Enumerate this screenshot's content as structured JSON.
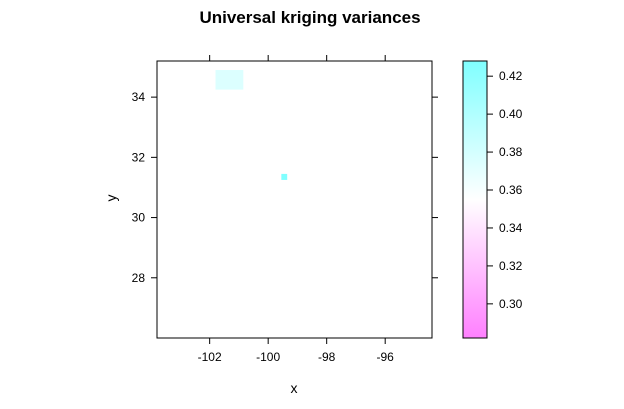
{
  "chart_data": {
    "type": "heatmap",
    "title": "Universal kriging variances",
    "xlabel": "x",
    "ylabel": "y",
    "xlim": [
      -103.8,
      -94.4
    ],
    "ylim": [
      26.0,
      35.2
    ],
    "x_ticks": [
      -102,
      -100,
      -98,
      -96
    ],
    "x_tick_labels": [
      "-102",
      "-100",
      "-98",
      "-96"
    ],
    "y_ticks": [
      28,
      30,
      32,
      34
    ],
    "y_tick_labels": [
      "28",
      "30",
      "32",
      "34"
    ],
    "grid": false,
    "background_value": 0.355,
    "cells": [
      {
        "x0": -101.8,
        "x1": -100.85,
        "y0": 34.25,
        "y1": 34.9,
        "value": 0.375
      },
      {
        "x0": -99.55,
        "x1": -99.35,
        "y0": 31.25,
        "y1": 31.45,
        "value": 0.43
      }
    ],
    "colorkey": {
      "position": "right",
      "range": [
        0.282,
        0.428
      ],
      "ticks": [
        0.3,
        0.32,
        0.34,
        0.36,
        0.38,
        0.4,
        0.42
      ],
      "tick_labels": [
        "0.30",
        "0.32",
        "0.34",
        "0.36",
        "0.38",
        "0.40",
        "0.42"
      ],
      "low_color": "#ff80ff",
      "mid_color": "#ffffff",
      "high_color": "#80ffff"
    }
  }
}
